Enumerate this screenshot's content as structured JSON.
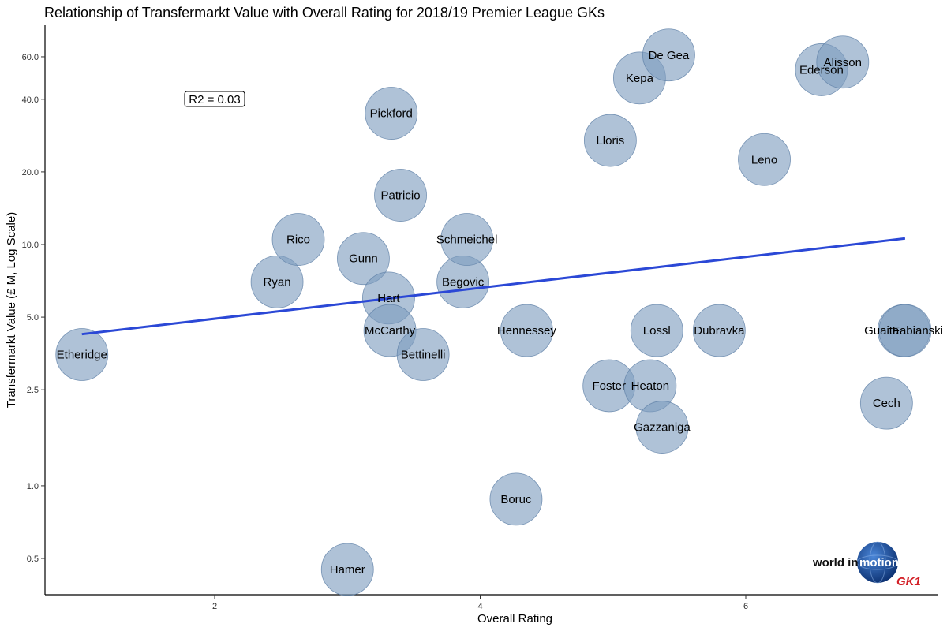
{
  "chart_data": {
    "type": "scatter",
    "title": "Relationship of Transfermarkt Value with Overall Rating for 2018/19 Premier League GKs",
    "xlabel": "Overall Rating",
    "ylabel": "Transfermarkt Value (£ M, Log Scale)",
    "xlim": [
      0.8,
      7.4
    ],
    "ylim": [
      0.4,
      80
    ],
    "yscale": "log",
    "grid": false,
    "x_ticks": [
      2,
      4,
      6
    ],
    "y_ticks": [
      0.5,
      1.0,
      2.5,
      5.0,
      10.0,
      20.0,
      40.0,
      60.0
    ],
    "annotation": "R2 = 0.03",
    "marker_color": "#7E9CBF",
    "trend_color": "#2B48D6",
    "trend_line": {
      "x": [
        1.0,
        7.2
      ],
      "y": [
        4.25,
        10.6
      ]
    },
    "points": [
      {
        "name": "Etheridge",
        "x": 1.0,
        "y": 3.5
      },
      {
        "name": "Ryan",
        "x": 2.47,
        "y": 7.0
      },
      {
        "name": "Rico",
        "x": 2.63,
        "y": 10.5
      },
      {
        "name": "Hamer",
        "x": 3.0,
        "y": 0.45
      },
      {
        "name": "Gunn",
        "x": 3.12,
        "y": 8.75
      },
      {
        "name": "Hart",
        "x": 3.31,
        "y": 6.0
      },
      {
        "name": "McCarthy",
        "x": 3.32,
        "y": 4.4
      },
      {
        "name": "Pickford",
        "x": 3.33,
        "y": 35.0
      },
      {
        "name": "Patricio",
        "x": 3.4,
        "y": 16.0
      },
      {
        "name": "Bettinelli",
        "x": 3.57,
        "y": 3.5
      },
      {
        "name": "Begovic",
        "x": 3.87,
        "y": 7.0
      },
      {
        "name": "Schmeichel",
        "x": 3.9,
        "y": 10.5
      },
      {
        "name": "Boruc",
        "x": 4.27,
        "y": 0.88
      },
      {
        "name": "Hennessey",
        "x": 4.35,
        "y": 4.4
      },
      {
        "name": "Foster",
        "x": 4.97,
        "y": 2.6
      },
      {
        "name": "Lloris",
        "x": 4.98,
        "y": 27.0
      },
      {
        "name": "Kepa",
        "x": 5.2,
        "y": 49.0
      },
      {
        "name": "Heaton",
        "x": 5.28,
        "y": 2.6
      },
      {
        "name": "Lossl",
        "x": 5.33,
        "y": 4.4
      },
      {
        "name": "Gazzaniga",
        "x": 5.37,
        "y": 1.75
      },
      {
        "name": "De Gea",
        "x": 5.42,
        "y": 61.0
      },
      {
        "name": "Dubravka",
        "x": 5.8,
        "y": 4.4
      },
      {
        "name": "Leno",
        "x": 6.14,
        "y": 22.5
      },
      {
        "name": "Ederson",
        "x": 6.57,
        "y": 53.0
      },
      {
        "name": "Alisson",
        "x": 6.73,
        "y": 57.0
      },
      {
        "name": "Cech",
        "x": 7.06,
        "y": 2.2
      },
      {
        "name": "Guaita",
        "x": 7.19,
        "y": 4.4
      },
      {
        "name": "Fabianski",
        "x": 7.2,
        "y": 4.4
      }
    ]
  },
  "logo": {
    "text_a": "world in ",
    "text_b": "motion",
    "text_c": "GK1"
  }
}
